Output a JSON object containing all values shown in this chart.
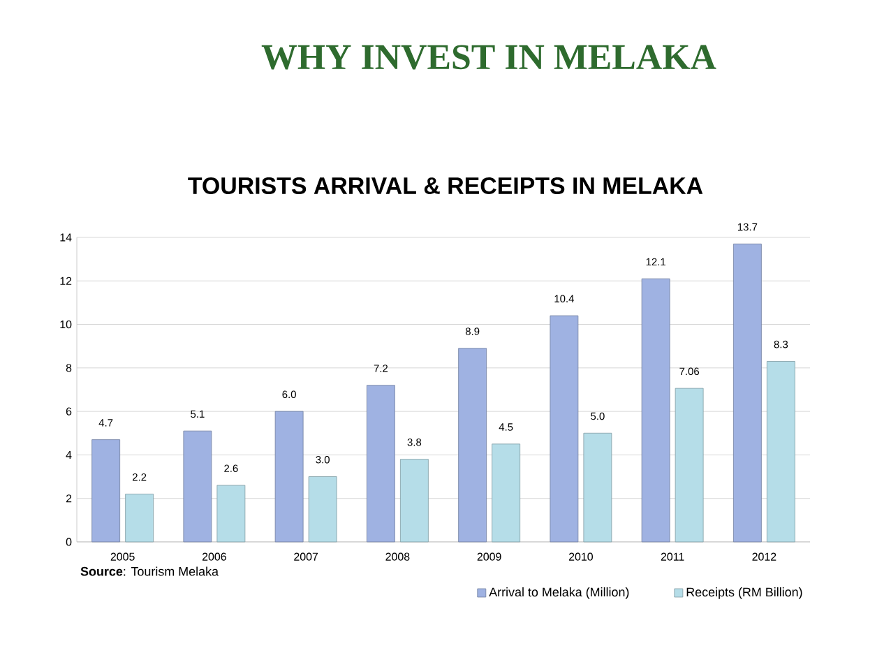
{
  "chart_data": {
    "type": "bar",
    "title": "WHY INVEST IN MELAKA",
    "subtitle": "TOURISTS ARRIVAL & RECEIPTS IN MELAKA",
    "annotations": [
      "**Source**: Tourism Melaka"
    ],
    "categories": [
      "2005",
      "2006",
      "2007",
      "2008",
      "2009",
      "2010",
      "2011",
      "2012"
    ],
    "series": [
      {
        "name": "Arrival to Melaka (Million)",
        "color": "#9fb2e2",
        "values": [
          4.7,
          5.1,
          6.0,
          7.2,
          8.9,
          10.4,
          12.1,
          13.7
        ],
        "value_labels": [
          "4.7",
          "5.1",
          "6.0",
          "7.2",
          "8.9",
          "10.4",
          "12.1",
          "13.7"
        ]
      },
      {
        "name": "Receipts (RM Billion)",
        "color": "#b5dde8",
        "values": [
          2.2,
          2.6,
          3.0,
          3.8,
          4.5,
          5.0,
          7.06,
          8.3
        ],
        "value_labels": [
          "2.2",
          "2.6",
          "3.0",
          "3.8",
          "4.5",
          "5.0",
          "7.06",
          "8.3"
        ]
      }
    ],
    "ylim": [
      0,
      14
    ],
    "yticks": [
      0,
      2,
      4,
      6,
      8,
      10,
      12,
      14
    ],
    "grid": "y",
    "legend": "bottom right"
  }
}
